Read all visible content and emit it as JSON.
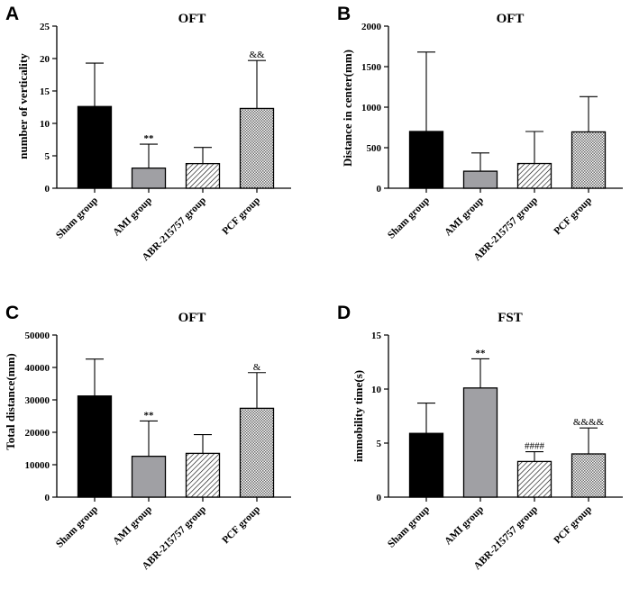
{
  "colors": {
    "sham": "#000000",
    "ami": "#a0a0a4",
    "axis": "#000000",
    "hatch": "#000000"
  },
  "chart_data": [
    {
      "panel": "A",
      "type": "bar",
      "title": "OFT",
      "ylabel": "number of verticality",
      "ylim": [
        0,
        25
      ],
      "yticks": [
        0,
        5,
        10,
        15,
        20,
        25
      ],
      "ytick_labels": [
        "0",
        "5",
        "10",
        "15",
        "20",
        "25"
      ],
      "categories": [
        "Sham group",
        "AMI group",
        "ABR-215757 group",
        "PCF group"
      ],
      "values": [
        12.6,
        3.1,
        3.8,
        12.3
      ],
      "errors": [
        6.7,
        3.7,
        2.5,
        7.4
      ],
      "annotations": [
        "",
        "**",
        "",
        "&&"
      ]
    },
    {
      "panel": "B",
      "type": "bar",
      "title": "OFT",
      "ylabel": "Distance in center(mm)",
      "ylim": [
        0,
        2000
      ],
      "yticks": [
        0,
        500,
        1000,
        1500,
        2000
      ],
      "ytick_labels": [
        "0",
        "500",
        "1000",
        "1500",
        "2000"
      ],
      "categories": [
        "Sham group",
        "AMI group",
        "ABR-215757 group",
        "PCF group"
      ],
      "values": [
        700,
        210,
        305,
        695
      ],
      "errors": [
        980,
        225,
        395,
        435
      ],
      "annotations": [
        "",
        "",
        "",
        ""
      ]
    },
    {
      "panel": "C",
      "type": "bar",
      "title": "OFT",
      "ylabel": "Total distance(mm)",
      "ylim": [
        0,
        50000
      ],
      "yticks": [
        0,
        10000,
        20000,
        30000,
        40000,
        50000
      ],
      "ytick_labels": [
        "0",
        "10000",
        "20000",
        "30000",
        "40000",
        "50000"
      ],
      "categories": [
        "Sham group",
        "AMI group",
        "ABR-215757 group",
        "PCF group"
      ],
      "values": [
        31200,
        12600,
        13500,
        27400
      ],
      "errors": [
        11400,
        10900,
        5800,
        11000
      ],
      "annotations": [
        "",
        "**",
        "",
        "&"
      ]
    },
    {
      "panel": "D",
      "type": "bar",
      "title": "FST",
      "ylabel": "immobility time(s)",
      "ylim": [
        0,
        15
      ],
      "yticks": [
        0,
        5,
        10,
        15
      ],
      "ytick_labels": [
        "0",
        "5",
        "10",
        "15"
      ],
      "categories": [
        "Sham group",
        "AMI group",
        "ABR-215757 group",
        "PCF group"
      ],
      "values": [
        5.9,
        10.1,
        3.3,
        4.0
      ],
      "errors": [
        2.8,
        2.7,
        0.9,
        2.4
      ],
      "annotations": [
        "",
        "**",
        "####",
        "&&&&"
      ]
    }
  ]
}
